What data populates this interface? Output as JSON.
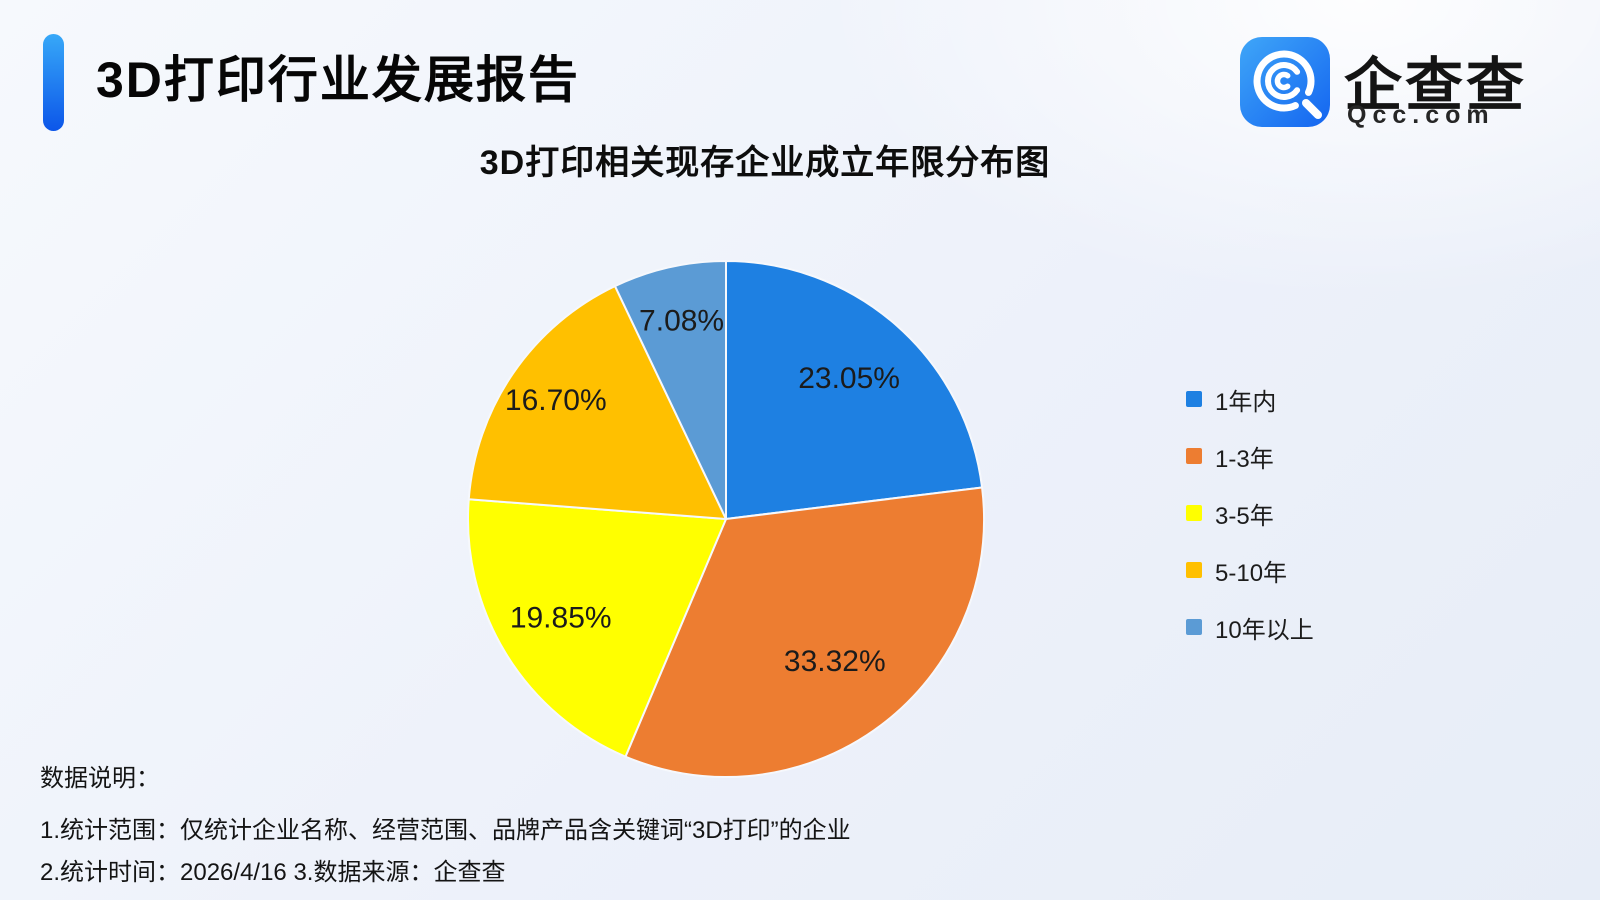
{
  "header": {
    "title": "3D打印行业发展报告"
  },
  "logo": {
    "brand": "企查查",
    "domain": "Qcc.com",
    "icon": "qcc-magnifier-icon",
    "icon_gradient_top": "#3fa6f8",
    "icon_gradient_bottom": "#1465f0"
  },
  "chart_title": "3D打印相关现存企业成立年限分布图",
  "chart_data": {
    "type": "pie",
    "title": "3D打印相关现存企业成立年限分布图",
    "categories": [
      "1年内",
      "1-3年",
      "3-5年",
      "5-10年",
      "10年以上"
    ],
    "values": [
      23.05,
      33.32,
      19.85,
      16.7,
      7.08
    ],
    "labels": [
      "23.05%",
      "33.32%",
      "19.85%",
      "16.70%",
      "7.08%"
    ],
    "colors": [
      "#1e80e2",
      "#ed7d31",
      "#ffff00",
      "#ffc000",
      "#5b9bd5"
    ],
    "start_angle_deg": 0,
    "direction": "clockwise",
    "legend_position": "right",
    "label_color": "#1b1b1b",
    "slice_gap_color": "#f6f8fc"
  },
  "notes": {
    "heading": "数据说明：",
    "lines": [
      "1.统计范围：仅统计企业名称、经营范围、品牌产品含关键词“3D打印”的企业",
      "2.统计时间：2026/4/16  3.数据来源：企查查"
    ]
  },
  "accent": {
    "bar_top": "#37a8f8",
    "bar_bottom": "#0c56e9"
  }
}
